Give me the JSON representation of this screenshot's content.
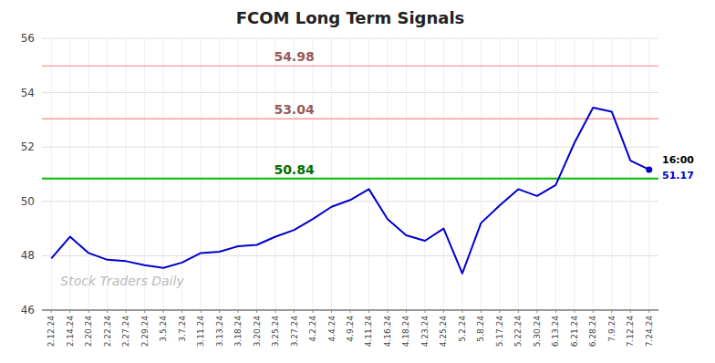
{
  "chart_data": {
    "type": "line",
    "title": "FCOM Long Term Signals",
    "categories": [
      "2.12.24",
      "2.14.24",
      "2.20.24",
      "2.22.24",
      "2.27.24",
      "2.29.24",
      "3.5.24",
      "3.7.24",
      "3.11.24",
      "3.13.24",
      "3.18.24",
      "3.20.24",
      "3.25.24",
      "3.27.24",
      "4.2.24",
      "4.4.24",
      "4.9.24",
      "4.11.24",
      "4.16.24",
      "4.18.24",
      "4.23.24",
      "4.25.24",
      "5.2.24",
      "5.8.24",
      "5.17.24",
      "5.22.24",
      "5.30.24",
      "6.13.24",
      "6.21.24",
      "6.28.24",
      "7.9.24",
      "7.12.24",
      "7.24.24"
    ],
    "values": [
      47.9,
      48.7,
      48.1,
      47.85,
      47.8,
      47.65,
      47.55,
      47.75,
      48.1,
      48.15,
      48.35,
      48.4,
      48.7,
      48.95,
      49.35,
      49.8,
      50.05,
      50.45,
      49.35,
      48.75,
      48.55,
      49.0,
      47.35,
      49.2,
      49.85,
      50.45,
      50.2,
      50.6,
      52.15,
      53.45,
      53.3,
      51.5,
      51.17
    ],
    "color": "#0000cc",
    "ylim": [
      46,
      56
    ],
    "yticks": [
      46,
      48,
      50,
      52,
      54,
      56
    ],
    "grid": true,
    "reference_lines": [
      {
        "value": 50.84,
        "label": "50.84",
        "color": "#00bb00"
      },
      {
        "value": 53.04,
        "label": "53.04",
        "color": "#ff9999"
      },
      {
        "value": 54.98,
        "label": "54.98",
        "color": "#ff9999"
      }
    ],
    "end_labels": {
      "time": "16:00",
      "value": 51.17
    },
    "watermark": "Stock Traders Daily"
  }
}
